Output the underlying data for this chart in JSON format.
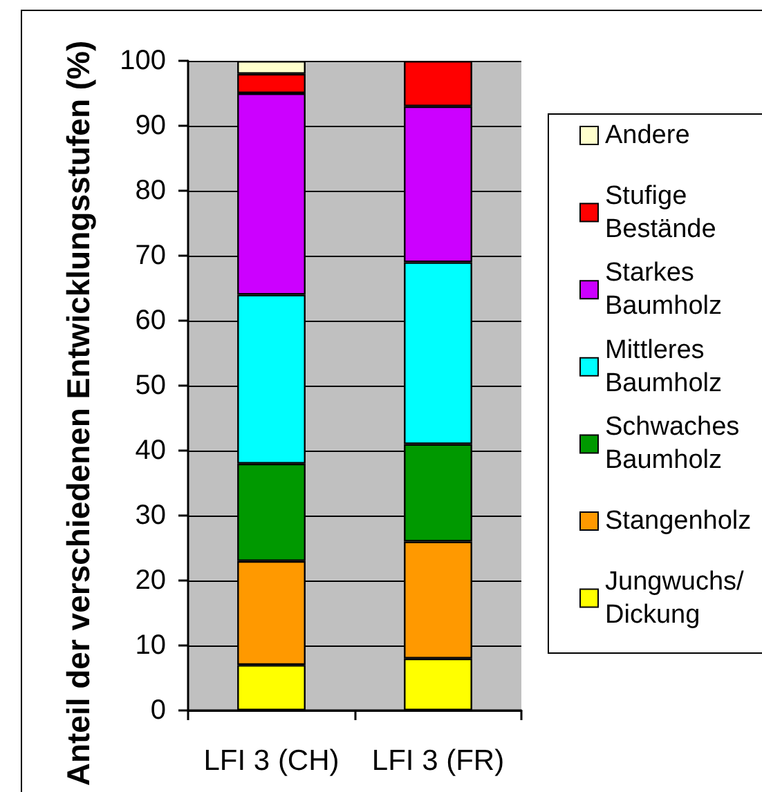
{
  "chart_data": {
    "type": "bar",
    "stacked": true,
    "ylabel": "Anteil der verschiedenen Entwicklungsstufen (%)",
    "categories": [
      "LFI 3 (CH)",
      "LFI 3 (FR)"
    ],
    "series": [
      {
        "name": "Jungwuchs/Dickung",
        "color": "#ffff00",
        "values": [
          7,
          8
        ]
      },
      {
        "name": "Stangenholz",
        "color": "#ff9900",
        "values": [
          16,
          18
        ]
      },
      {
        "name": "Schwaches Baumholz",
        "color": "#009900",
        "values": [
          15,
          15
        ]
      },
      {
        "name": "Mittleres Baumholz",
        "color": "#00ffff",
        "values": [
          26,
          28
        ]
      },
      {
        "name": "Starkes Baumholz",
        "color": "#cc00ff",
        "values": [
          31,
          24
        ]
      },
      {
        "name": "Stufige Bestände",
        "color": "#ff0000",
        "values": [
          3,
          7
        ]
      },
      {
        "name": "Andere",
        "color": "#ffffcc",
        "values": [
          2,
          null
        ]
      }
    ],
    "ylim": [
      0,
      100
    ],
    "yticks": [
      0,
      10,
      20,
      30,
      40,
      50,
      60,
      70,
      80,
      90,
      100
    ],
    "grid": "y",
    "legend": "right"
  }
}
